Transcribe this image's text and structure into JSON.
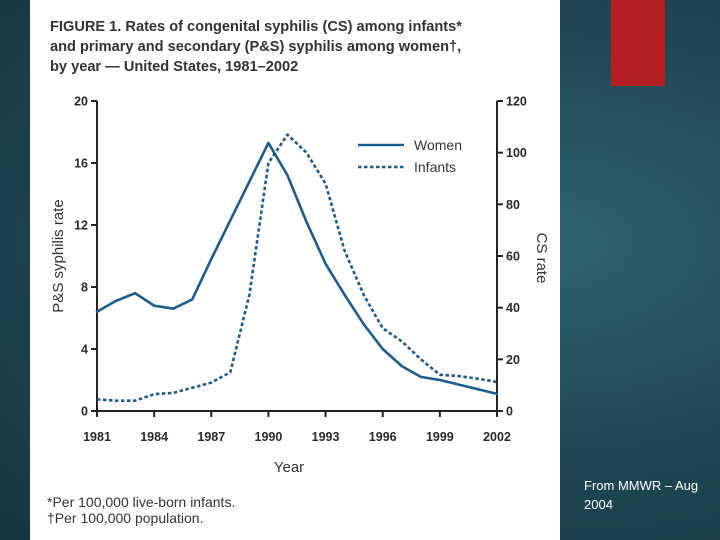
{
  "figure": {
    "title_lines": [
      "FIGURE 1. Rates of congenital syphilis (CS) among infants*",
      "and primary and secondary (P&S) syphilis among women†,",
      "by year — United States, 1981–2002"
    ],
    "footnotes": [
      "*Per 100,000 live-born infants.",
      "†Per 100,000 population."
    ]
  },
  "source_note": "From MMWR – Aug 2004",
  "colors": {
    "accent_red": "#b51f24",
    "line_color": "#1b5c8e",
    "axis_color": "#222222",
    "background": "#214a55"
  },
  "chart_data": {
    "type": "line",
    "title": "Rates of congenital syphilis (CS) among infants and primary and secondary (P&S) syphilis among women, by year — United States, 1981–2002",
    "xlabel": "Year",
    "ylabel_left": "P&S syphilis rate",
    "ylabel_right": "CS rate",
    "xlim": [
      1981,
      2002
    ],
    "ylim_left": [
      0,
      20
    ],
    "ylim_right": [
      0,
      120
    ],
    "x_ticks": [
      "1981",
      "1984",
      "1987",
      "1990",
      "1993",
      "1996",
      "1999",
      "2002"
    ],
    "y_ticks_left": [
      "0",
      "4",
      "8",
      "12",
      "16",
      "20"
    ],
    "y_ticks_right": [
      "0",
      "20",
      "40",
      "60",
      "80",
      "100",
      "120"
    ],
    "legend_position": "top-right",
    "series": [
      {
        "name": "Women",
        "axis": "left",
        "style": "solid",
        "x": [
          1981,
          1982,
          1983,
          1984,
          1985,
          1986,
          1987,
          1988,
          1989,
          1990,
          1991,
          1992,
          1993,
          1994,
          1995,
          1996,
          1997,
          1998,
          1999,
          2000,
          2001,
          2002
        ],
        "values": [
          6.4,
          7.1,
          7.6,
          6.8,
          6.6,
          7.2,
          9.8,
          12.3,
          14.8,
          17.3,
          15.2,
          12.2,
          9.5,
          7.5,
          5.6,
          4.0,
          2.9,
          2.2,
          2.0,
          1.7,
          1.4,
          1.1
        ]
      },
      {
        "name": "Infants",
        "axis": "right",
        "style": "dashed",
        "x": [
          1981,
          1982,
          1983,
          1984,
          1985,
          1986,
          1987,
          1988,
          1989,
          1990,
          1991,
          1992,
          1993,
          1994,
          1995,
          1996,
          1997,
          1998,
          1999,
          2000,
          2001,
          2002
        ],
        "values": [
          4.5,
          4.0,
          4.0,
          6.5,
          7.0,
          9.0,
          11.0,
          15.0,
          45.0,
          96.0,
          107.0,
          100.0,
          88.0,
          62.0,
          45.0,
          32.0,
          27.0,
          20.0,
          14.0,
          13.5,
          12.5,
          11.2
        ]
      }
    ]
  }
}
